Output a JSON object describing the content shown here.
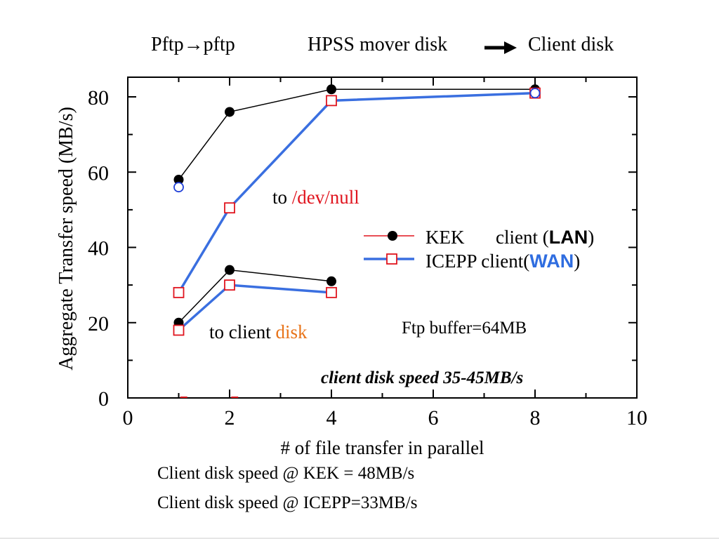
{
  "header": {
    "left": "Pftp→pftp",
    "middle": "HPSS mover disk",
    "right": "Client disk"
  },
  "footer": {
    "line1": "Client disk speed @ KEK = 48MB/s",
    "line2": "Client disk speed @ ICEPP=33MB/s"
  },
  "chart_data": {
    "type": "line",
    "xlabel": "# of file transfer in parallel",
    "ylabel": "Aggregate Transfer speed (MB/s)",
    "xlim": [
      0,
      10
    ],
    "ylim": [
      0,
      86
    ],
    "xticks": [
      0,
      2,
      4,
      6,
      8,
      10
    ],
    "yticks": [
      0,
      20,
      40,
      60,
      80
    ],
    "grid": false,
    "legend_placement": "right-middle",
    "series": [
      {
        "name": "KEK client (LAN)",
        "group": "to /dev/null",
        "marker": "filled-circle",
        "color": "#000000",
        "x": [
          1,
          2,
          4,
          8
        ],
        "y": [
          58,
          76,
          82,
          82
        ]
      },
      {
        "name": "ICEPP client(WAN)",
        "group": "to /dev/null",
        "marker": "open-square",
        "color": "#3a6fe0",
        "x": [
          1,
          2,
          4,
          8
        ],
        "y": [
          28,
          50.5,
          79,
          81
        ]
      },
      {
        "name": "KEK client (LAN)",
        "group": "to client disk",
        "marker": "filled-circle",
        "color": "#000000",
        "x": [
          1,
          2,
          4
        ],
        "y": [
          20,
          34,
          31
        ]
      },
      {
        "name": "ICEPP client(WAN)",
        "group": "to client disk",
        "marker": "open-square",
        "color": "#3a6fe0",
        "x": [
          1,
          2,
          4
        ],
        "y": [
          18,
          30,
          28
        ]
      }
    ],
    "extra_points": [
      {
        "x": 1,
        "y": 56,
        "marker": "open-circle",
        "color": "#1f3fd8"
      },
      {
        "x": 8,
        "y": 81,
        "marker": "open-circle",
        "color": "#1f3fd8"
      }
    ],
    "legend": {
      "kek": {
        "name": "KEK",
        "text": "client (",
        "tag": "LAN",
        "close": ")"
      },
      "icepp": {
        "name": "ICEPP",
        "text": "client(",
        "tag": "WAN",
        "close": ")"
      }
    },
    "annotations": {
      "devnull_prefix": "to ",
      "devnull_target": "/dev/null",
      "disk_prefix": "to client ",
      "disk_target": "disk",
      "buffer": "Ftp buffer=64MB",
      "speed_note": "client disk speed 35-45MB/s"
    },
    "colors": {
      "red": "#e0141e",
      "orange": "#e8741a",
      "blue": "#3a6fe0",
      "wan_text": "#2f6de0",
      "marker_red": "#e0141e"
    }
  }
}
